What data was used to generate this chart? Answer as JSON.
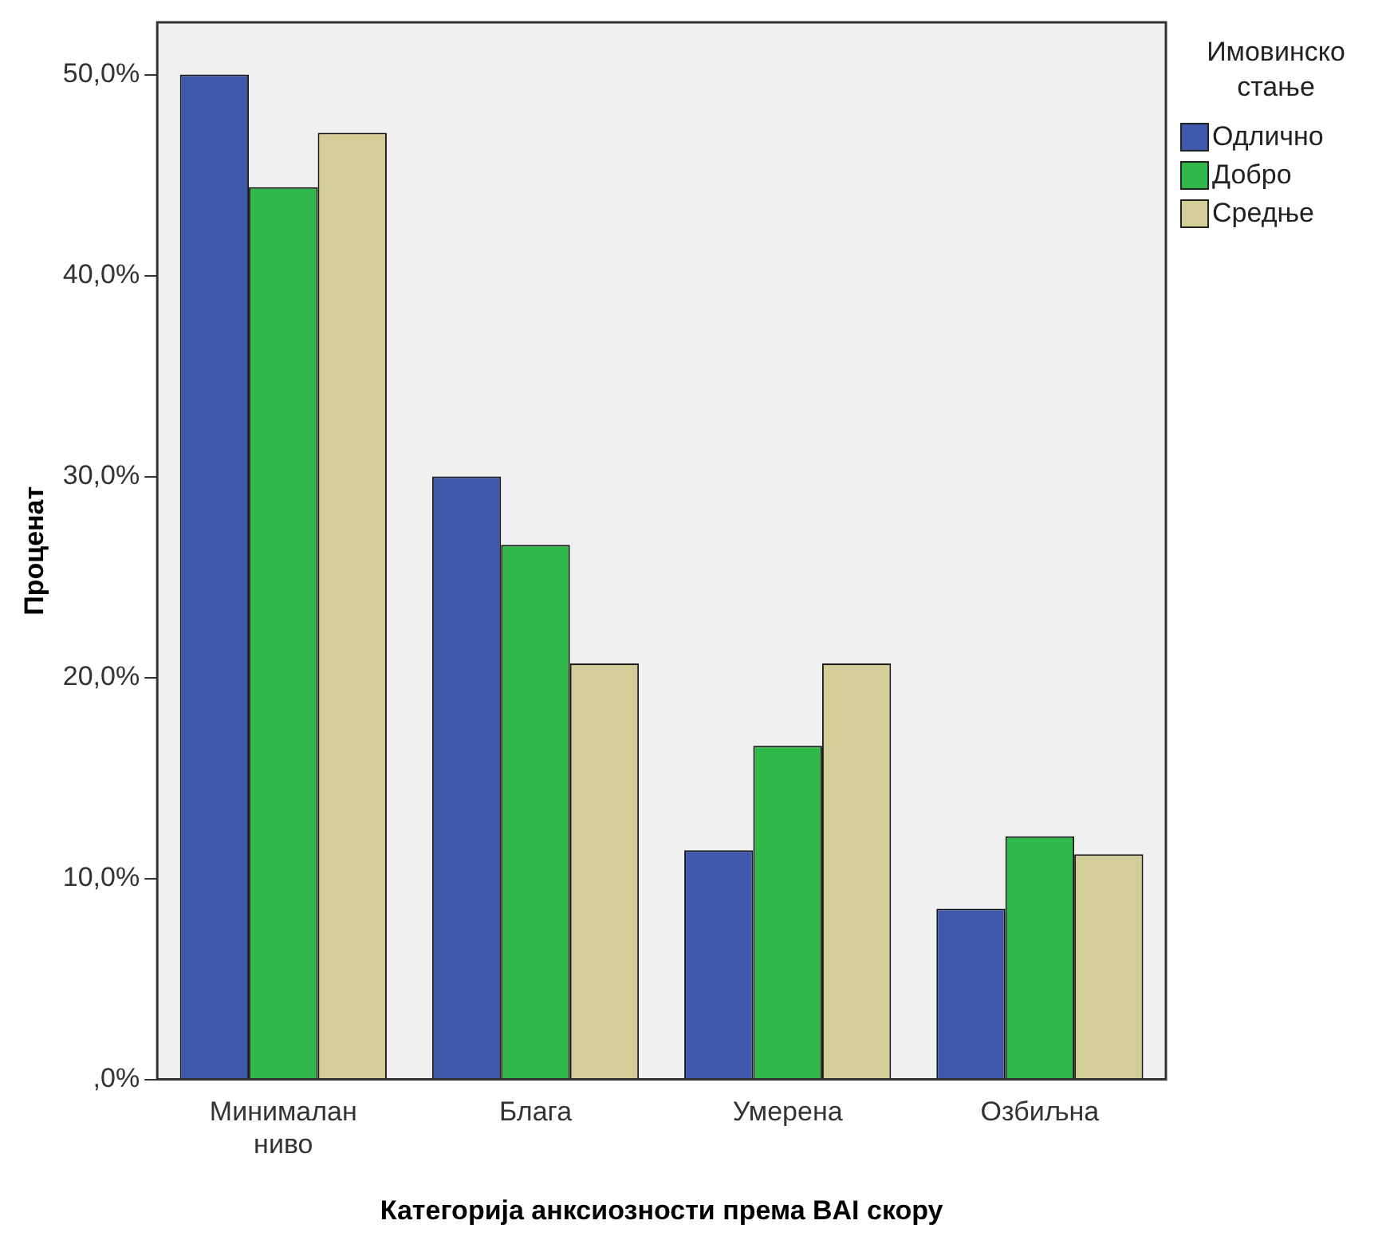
{
  "chart_data": {
    "type": "bar",
    "xlabel": "Категорија анксиозности према BAI скору",
    "ylabel": "Проценат",
    "legend_title": "Имовинско стање",
    "legend": "top right",
    "categories": [
      "Минималан ниво",
      "Блага",
      "Умерена",
      "Озбиљна"
    ],
    "series": [
      {
        "name": "Одлично",
        "color": "#3e58ac",
        "values": [
          50.0,
          30.0,
          11.4,
          8.5
        ]
      },
      {
        "name": "Добро",
        "color": "#30b84a",
        "values": [
          44.4,
          26.6,
          16.6,
          12.1
        ]
      },
      {
        "name": "Средње",
        "color": "#d3ce98",
        "values": [
          47.1,
          20.7,
          20.7,
          11.2
        ]
      }
    ],
    "ylim": [
      0,
      52.6
    ],
    "yticks": [
      {
        "value": 0,
        "label": ",0%"
      },
      {
        "value": 10,
        "label": "10,0%"
      },
      {
        "value": 20,
        "label": "20,0%"
      },
      {
        "value": 30,
        "label": "30,0%"
      },
      {
        "value": 40,
        "label": "40,0%"
      },
      {
        "value": 50,
        "label": "50,0%"
      }
    ],
    "grid": false
  }
}
